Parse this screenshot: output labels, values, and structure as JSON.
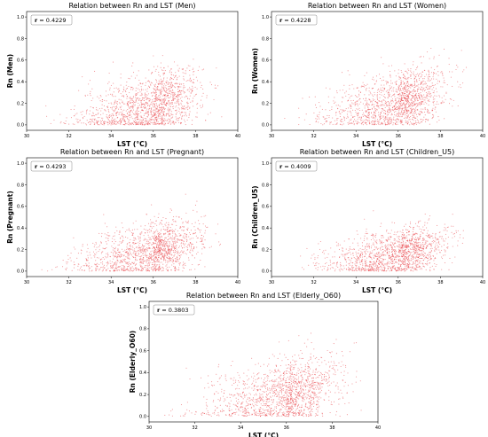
{
  "panels": [
    {
      "title": "Relation between Rn and LST (Men)",
      "xlabel": "LST (°C)",
      "ylabel": "Rn (Men)",
      "r_label": "r",
      "r_value": "= 0.4229",
      "chart_data": {
        "type": "scatter",
        "title": "Relation between Rn and LST (Men)",
        "xlabel": "LST (°C)",
        "ylabel": "Rn (Men)",
        "xlim": [
          30,
          40
        ],
        "ylim": [
          -0.05,
          1.05
        ],
        "xticks": [
          "30",
          "32",
          "34",
          "36",
          "38",
          "40"
        ],
        "yticks": [
          "0.0",
          "0.2",
          "0.4",
          "0.6",
          "0.8",
          "1.0"
        ],
        "point_count": 1500,
        "x_center": 36.0,
        "x_spread": 1.3,
        "y_center": 0.18,
        "y_spread": 0.16,
        "correlation": 0.4229,
        "color": "#e8353a"
      }
    },
    {
      "title": "Relation between Rn and LST (Women)",
      "xlabel": "LST (°C)",
      "ylabel": "Rn (Women)",
      "r_label": "r",
      "r_value": "= 0.4228",
      "chart_data": {
        "type": "scatter",
        "title": "Relation between Rn and LST (Women)",
        "xlabel": "LST (°C)",
        "ylabel": "Rn (Women)",
        "xlim": [
          30,
          40
        ],
        "ylim": [
          -0.05,
          1.05
        ],
        "xticks": [
          "30",
          "32",
          "34",
          "36",
          "38",
          "40"
        ],
        "yticks": [
          "0.0",
          "0.2",
          "0.4",
          "0.6",
          "0.8",
          "1.0"
        ],
        "point_count": 1500,
        "x_center": 36.0,
        "x_spread": 1.3,
        "y_center": 0.2,
        "y_spread": 0.16,
        "correlation": 0.4228,
        "color": "#e8353a"
      }
    },
    {
      "title": "Relation between Rn and LST (Pregnant)",
      "xlabel": "LST (°C)",
      "ylabel": "Rn (Pregnant)",
      "r_label": "r",
      "r_value": "= 0.4293",
      "chart_data": {
        "type": "scatter",
        "title": "Relation between Rn and LST (Pregnant)",
        "xlabel": "LST (°C)",
        "ylabel": "Rn (Pregnant)",
        "xlim": [
          30,
          40
        ],
        "ylim": [
          -0.05,
          1.05
        ],
        "xticks": [
          "30",
          "32",
          "34",
          "36",
          "38",
          "40"
        ],
        "yticks": [
          "0.0",
          "0.2",
          "0.4",
          "0.6",
          "0.8",
          "1.0"
        ],
        "point_count": 1500,
        "x_center": 36.0,
        "x_spread": 1.3,
        "y_center": 0.18,
        "y_spread": 0.15,
        "correlation": 0.4293,
        "color": "#e8353a"
      }
    },
    {
      "title": "Relation between Rn and LST (Children_U5)",
      "xlabel": "LST (°C)",
      "ylabel": "Rn (Children_U5)",
      "r_label": "r",
      "r_value": "= 0.4009",
      "chart_data": {
        "type": "scatter",
        "title": "Relation between Rn and LST (Children_U5)",
        "xlabel": "LST (°C)",
        "ylabel": "Rn (Children_U5)",
        "xlim": [
          30,
          40
        ],
        "ylim": [
          -0.05,
          1.05
        ],
        "xticks": [
          "30",
          "32",
          "34",
          "36",
          "38",
          "40"
        ],
        "yticks": [
          "0.0",
          "0.2",
          "0.4",
          "0.6",
          "0.8",
          "1.0"
        ],
        "point_count": 1500,
        "x_center": 36.0,
        "x_spread": 1.3,
        "y_center": 0.15,
        "y_spread": 0.13,
        "correlation": 0.4009,
        "color": "#e8353a"
      }
    },
    {
      "title": "Relation between Rn and LST (Elderly_O60)",
      "xlabel": "LST (°C)",
      "ylabel": "Rn (Elderly_O60)",
      "r_label": "r",
      "r_value": "= 0.3803",
      "chart_data": {
        "type": "scatter",
        "title": "Relation between Rn and LST (Elderly_O60)",
        "xlabel": "LST (°C)",
        "ylabel": "Rn (Elderly_O60)",
        "xlim": [
          30,
          40
        ],
        "ylim": [
          -0.05,
          1.05
        ],
        "xticks": [
          "30",
          "32",
          "34",
          "36",
          "38",
          "40"
        ],
        "yticks": [
          "0.0",
          "0.2",
          "0.4",
          "0.6",
          "0.8",
          "1.0"
        ],
        "point_count": 1500,
        "x_center": 36.0,
        "x_spread": 1.3,
        "y_center": 0.2,
        "y_spread": 0.17,
        "correlation": 0.3803,
        "color": "#e8353a"
      }
    }
  ]
}
